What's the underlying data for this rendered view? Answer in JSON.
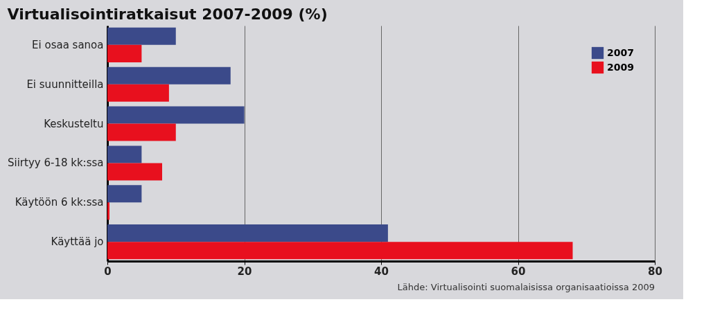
{
  "chart_data": {
    "type": "bar",
    "orientation": "horizontal",
    "title": "Virtualisointiratkaisut 2007-2009 (%)",
    "categories": [
      "Ei osaa sanoa",
      "Ei suunnitteilla",
      "Keskusteltu",
      "Siirtyy 6-18 kk:ssa",
      "Käytöön 6 kk:ssa",
      "Käyttää jo"
    ],
    "series": [
      {
        "name": "2007",
        "color": "#3b4a8a",
        "values": [
          10,
          18,
          20,
          5,
          5,
          41
        ]
      },
      {
        "name": "2009",
        "color": "#e8101e",
        "values": [
          5,
          9,
          10,
          8,
          0.3,
          68
        ]
      }
    ],
    "xlim": [
      0,
      80
    ],
    "xticks": [
      0,
      20,
      40,
      60,
      80
    ],
    "grid": "x",
    "legend": "top right",
    "annotations": [
      "Lähde: Virtualisointi suomalaisissa organisaatioissa 2009"
    ]
  }
}
